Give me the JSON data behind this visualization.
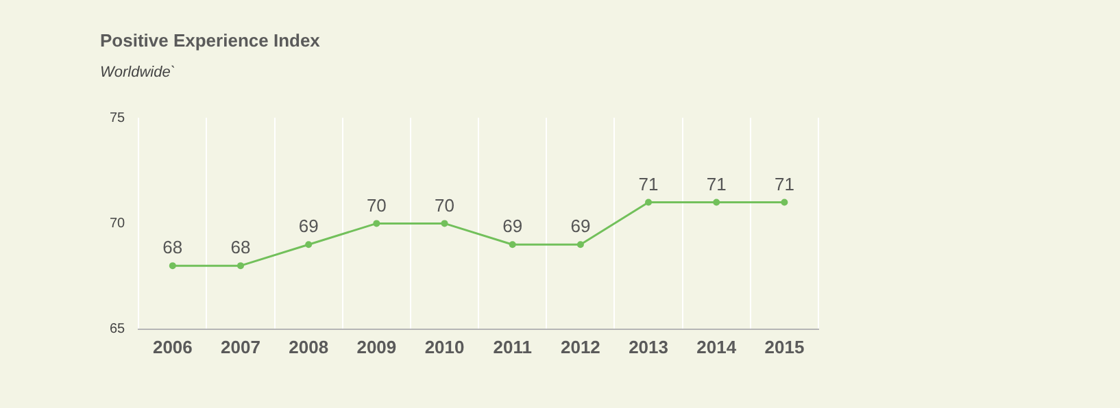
{
  "chart_data": {
    "type": "line",
    "title": "Positive Experience Index",
    "subtitle": "Worldwide`",
    "categories": [
      "2006",
      "2007",
      "2008",
      "2009",
      "2010",
      "2011",
      "2012",
      "2013",
      "2014",
      "2015"
    ],
    "series": [
      {
        "color": "#72c05b",
        "values": [
          68,
          68,
          69,
          70,
          70,
          69,
          69,
          71,
          71,
          71
        ]
      }
    ],
    "ylim": [
      65,
      75
    ],
    "yticks": [
      65,
      70,
      75
    ],
    "grid": "x",
    "legend": false,
    "marker": "circle",
    "line_style": "solid",
    "data_labels": true
  }
}
